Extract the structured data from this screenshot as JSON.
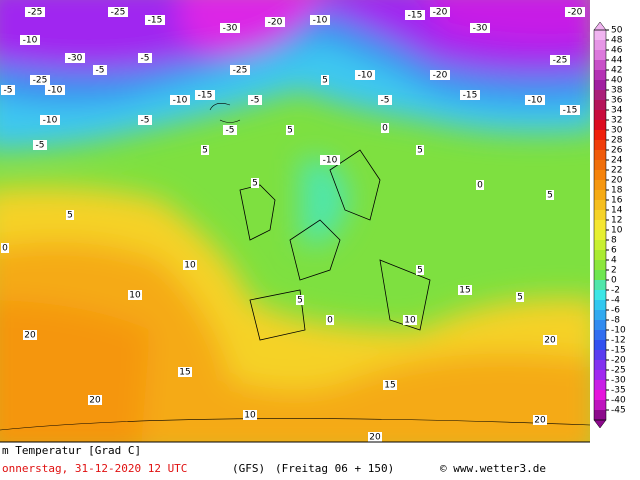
{
  "map": {
    "labels": [
      -25,
      -25,
      -15,
      -30,
      -20,
      -10,
      -15,
      -20,
      -30,
      -25,
      -20,
      -10,
      -30,
      -5,
      -25,
      -5,
      -10,
      -5,
      -25,
      -15,
      -10,
      -5,
      5,
      -10,
      -5,
      -20,
      -15,
      -10,
      -15,
      -10,
      -5,
      -5,
      -5,
      5,
      5,
      0,
      -10,
      5,
      0,
      5,
      0,
      5,
      10,
      10,
      20,
      15,
      20,
      0,
      10,
      15,
      5,
      20,
      15,
      10,
      20,
      20,
      5,
      5,
      5
    ]
  },
  "colorbar": {
    "ticks": [
      50,
      48,
      46,
      44,
      42,
      40,
      38,
      36,
      34,
      32,
      30,
      28,
      26,
      24,
      22,
      20,
      18,
      16,
      14,
      12,
      10,
      8,
      6,
      4,
      2,
      0,
      -2,
      -4,
      -6,
      -8,
      -10,
      -12,
      -15,
      -20,
      -25,
      -30,
      -35,
      -40,
      -45
    ],
    "colors": [
      "#f0b4f0",
      "#e696e6",
      "#dc78dc",
      "#c850c8",
      "#b432b4",
      "#a01ea0",
      "#aa1e78",
      "#b4145a",
      "#c80a3c",
      "#dc0a1e",
      "#f01e0a",
      "#f03c0a",
      "#f05a0a",
      "#f06e0a",
      "#f5820a",
      "#f5960f",
      "#f5aa14",
      "#f5be1e",
      "#f5d228",
      "#f5e632",
      "#e6f032",
      "#c8f032",
      "#aaeb32",
      "#8ce63c",
      "#6ee650",
      "#50e6aa",
      "#3ce6e6",
      "#32c8f0",
      "#32aaf0",
      "#328cf0",
      "#326ef0",
      "#3250f0",
      "#5a3cf0",
      "#8232f0",
      "#a028f0",
      "#c81ee6",
      "#e614dc",
      "#be14be",
      "#8c0a8c"
    ]
  },
  "footer": {
    "title": "m Temperatur [Grad C]",
    "date": "onnerstag, 31-12-2020  12 UTC",
    "model": "(GFS)",
    "run": "(Freitag 06 + 150)",
    "credit": "© www.wetter3.de"
  }
}
